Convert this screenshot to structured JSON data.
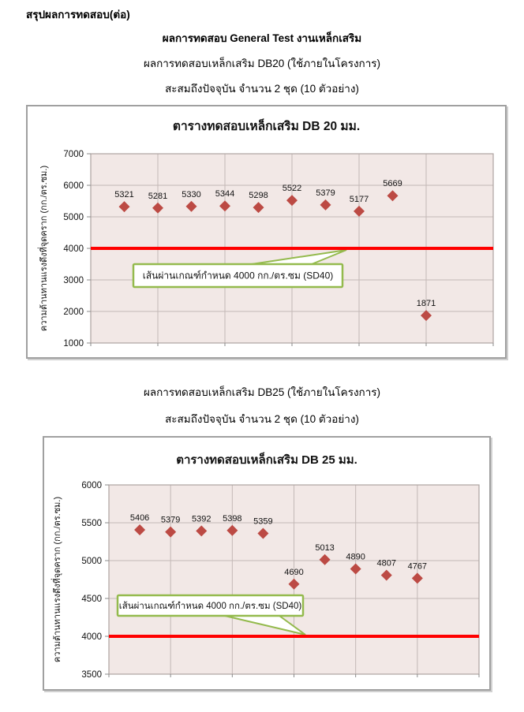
{
  "page": {
    "title": "สรุปผลการทดสอบ(ต่อ)",
    "subtitle": "ผลการทดสอบ General Test งานเหล็กเสริม",
    "section1": {
      "line1": "ผลการทดสอบเหล็กเสริม DB20 (ใช้ภายในโครงการ)",
      "line2": "สะสมถึงปัจจุบัน จำนวน 2 ชุด (10 ตัวอย่าง)"
    },
    "section2": {
      "line1": "ผลการทดสอบเหล็กเสริม DB25 (ใช้ภายในโครงการ)",
      "line2": "สะสมถึงปัจจุบัน จำนวน 2 ชุด (10 ตัวอย่าง)"
    }
  },
  "chart_data": [
    {
      "type": "scatter",
      "title": "ตารางทดสอบเหล็กเสริม DB 20 มม.",
      "ylabel": "ความต้านทานแรงดึงที่จุดคราก  (กก./ตร.ซม.)",
      "xlabel": "",
      "x": [
        1,
        2,
        3,
        4,
        5,
        6,
        7,
        8,
        9,
        10
      ],
      "values": [
        5321,
        5281,
        5330,
        5344,
        5298,
        5522,
        5379,
        5177,
        5669,
        1871
      ],
      "point_labels": [
        "5321",
        "5281",
        "5330",
        "5344",
        "5298",
        "5522",
        "5379",
        "5177",
        "5669",
        "1871"
      ],
      "ylim": [
        1000,
        7000
      ],
      "ytick_step": 1000,
      "xlim": [
        0,
        12
      ],
      "xgrid_step": 2,
      "grid": true,
      "legend": false,
      "marker": "diamond",
      "marker_color": "#BC4A44",
      "plot_bg": "#F2E8E6",
      "gridline_color": "#C3B8B6",
      "limit_line": {
        "value": 4000,
        "color": "#FF0000",
        "callout_label": "เส้นผ่านเกณฑ์กำหนด 4000 กก./ตร.ซม  (SD40)",
        "callout_border": "#94BA4D"
      }
    },
    {
      "type": "scatter",
      "title": "ตารางทดสอบเหล็กเสริม DB 25 มม.",
      "ylabel": "ความต้านทานแรงดึงที่จุดคราก  (กก./ตร.ซม.)",
      "xlabel": "",
      "x": [
        1,
        2,
        3,
        4,
        5,
        6,
        7,
        8,
        9,
        10
      ],
      "values": [
        5406,
        5379,
        5392,
        5398,
        5359,
        4690,
        5013,
        4890,
        4807,
        4767
      ],
      "point_labels": [
        "5406",
        "5379",
        "5392",
        "5398",
        "5359",
        "4690",
        "5013",
        "4890",
        "4807",
        "4767"
      ],
      "ylim": [
        3500,
        6000
      ],
      "ytick_step": 500,
      "xlim": [
        0,
        12
      ],
      "xgrid_step": 2,
      "grid": true,
      "legend": false,
      "marker": "diamond",
      "marker_color": "#BC4A44",
      "plot_bg": "#F2E8E6",
      "gridline_color": "#C3B8B6",
      "limit_line": {
        "value": 4000,
        "color": "#FF0000",
        "callout_label": "เส้นผ่านเกณฑ์กำหนด 4000 กก./ตร.ซม  (SD40)",
        "callout_border": "#94BA4D"
      }
    }
  ]
}
